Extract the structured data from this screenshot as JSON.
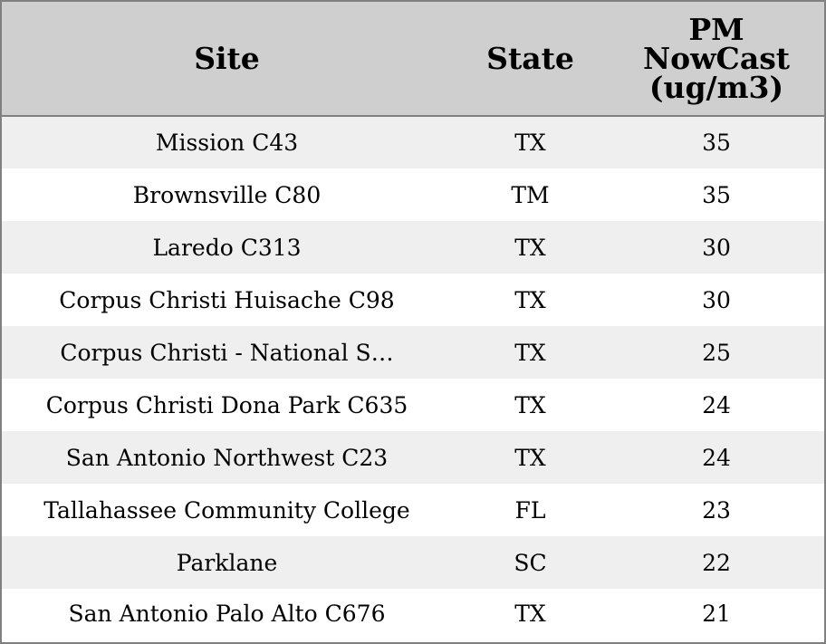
{
  "table": {
    "headers": {
      "site": "Site",
      "state": "State",
      "pm": "PM NowCast (ug/m3)"
    },
    "rows": [
      {
        "site": "Mission C43",
        "state": "TX",
        "pm": "35"
      },
      {
        "site": "Brownsville C80",
        "state": "TM",
        "pm": "35"
      },
      {
        "site": "Laredo C313",
        "state": "TX",
        "pm": "30"
      },
      {
        "site": "Corpus Christi Huisache C98",
        "state": "TX",
        "pm": "30"
      },
      {
        "site": "Corpus Christi - National S…",
        "state": "TX",
        "pm": "25"
      },
      {
        "site": "Corpus Christi Dona Park C635",
        "state": "TX",
        "pm": "24"
      },
      {
        "site": "San Antonio Northwest C23",
        "state": "TX",
        "pm": "24"
      },
      {
        "site": "Tallahassee Community College",
        "state": "FL",
        "pm": "23"
      },
      {
        "site": "Parklane",
        "state": "SC",
        "pm": "22"
      },
      {
        "site": "San Antonio Palo Alto C676",
        "state": "TX",
        "pm": "21"
      }
    ]
  },
  "colors": {
    "header_bg": "#cfcfcf",
    "row_alt_bg": "#efefef",
    "row_bg": "#ffffff",
    "border": "#808080"
  }
}
